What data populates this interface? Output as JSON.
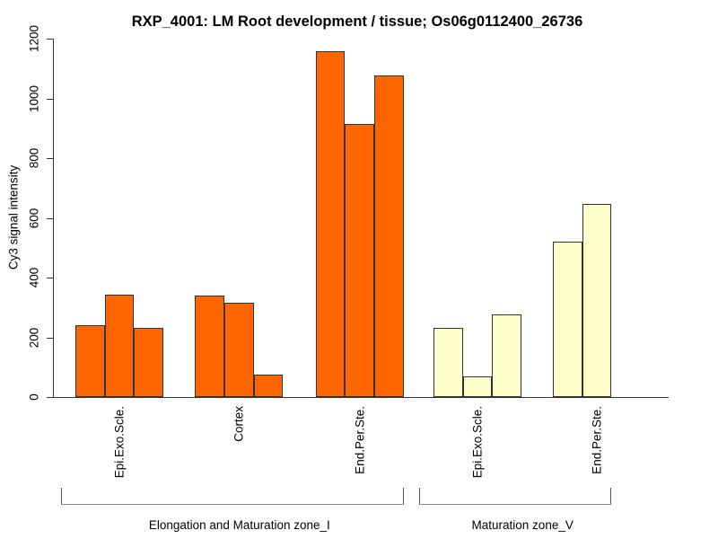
{
  "chart_data": {
    "type": "bar",
    "title": "RXP_4001: LM Root development / tissue; Os06g0112400_26736",
    "ylabel": "Cy3 signal intensity",
    "ylim": [
      0,
      1200
    ],
    "yticks": [
      0,
      200,
      400,
      600,
      800,
      1000,
      1200
    ],
    "grid": false,
    "legend": "none",
    "groups": [
      {
        "tissue": "Epi.Exo.Scle.",
        "zone_index": 0,
        "color": "#FF6600",
        "values": [
          240,
          342,
          231
        ]
      },
      {
        "tissue": "Cortex",
        "zone_index": 0,
        "color": "#FF6600",
        "values": [
          339,
          316,
          74
        ]
      },
      {
        "tissue": "End.Per.Ste.",
        "zone_index": 0,
        "color": "#FF6600",
        "values": [
          1158,
          913,
          1076
        ]
      },
      {
        "tissue": "Epi.Exo.Scle.",
        "zone_index": 1,
        "color": "#FFFFCC",
        "values": [
          231,
          69,
          278
        ]
      },
      {
        "tissue": "End.Per.Ste.",
        "zone_index": 1,
        "color": "#FFFFCC",
        "values": [
          519,
          646,
          0
        ]
      }
    ],
    "zones": [
      {
        "label": "Elongation and Maturation zone_I",
        "group_indices": [
          0,
          1,
          2
        ],
        "bar_color": "#FF6600"
      },
      {
        "label": "Maturation zone_V",
        "group_indices": [
          3,
          4
        ],
        "bar_color": "#FFFFCC"
      }
    ]
  }
}
